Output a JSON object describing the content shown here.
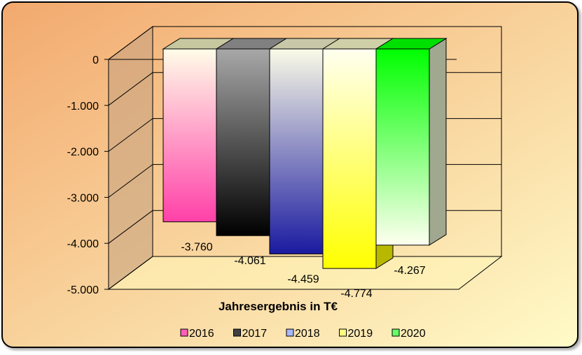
{
  "chart_data": {
    "type": "bar",
    "title": "",
    "xlabel": "Jahresergebnis in T€",
    "ylabel": "",
    "ylim": [
      -5000,
      0
    ],
    "ytick_values": [
      0,
      -1000,
      -2000,
      -3000,
      -4000,
      -5000
    ],
    "ytick_labels": [
      "0",
      "-1.000",
      "-2.000",
      "-3.000",
      "-4.000",
      "-5.000"
    ],
    "grid": true,
    "legend_position": "bottom",
    "series": [
      {
        "name": "2016",
        "value": -3760,
        "label": "-3.760",
        "colors": [
          "#fffde8",
          "#ff40a8"
        ],
        "side": "#e0d8a8",
        "top": "#c8c8a0"
      },
      {
        "name": "2017",
        "value": -4061,
        "label": "-4.061",
        "colors": [
          "#a8a8a8",
          "#000000"
        ],
        "side": "#404040",
        "top": "#808080"
      },
      {
        "name": "2018",
        "value": -4459,
        "label": "-4.459",
        "colors": [
          "#fbfbe8",
          "#1a1aa0"
        ],
        "side": "#c8c8b0",
        "top": "#c8c8a8"
      },
      {
        "name": "2019",
        "value": -4774,
        "label": "-4.774",
        "colors": [
          "#fffff0",
          "#ffff00"
        ],
        "side": "#b8b800",
        "top": "#d0d0a8"
      },
      {
        "name": "2020",
        "value": -4267,
        "label": "-4.267",
        "colors": [
          "#00ff00",
          "#fffff0"
        ],
        "side": "#a0a890",
        "top": "#00e000"
      }
    ],
    "legend_colors": [
      "#ff5fb8",
      "#404040",
      "#a8b8f8",
      "#ffff80",
      "#66ff66"
    ]
  },
  "theme": {
    "background_top": "#f2a96e",
    "background_bottom": "#fffbc8",
    "border": "#000000"
  }
}
